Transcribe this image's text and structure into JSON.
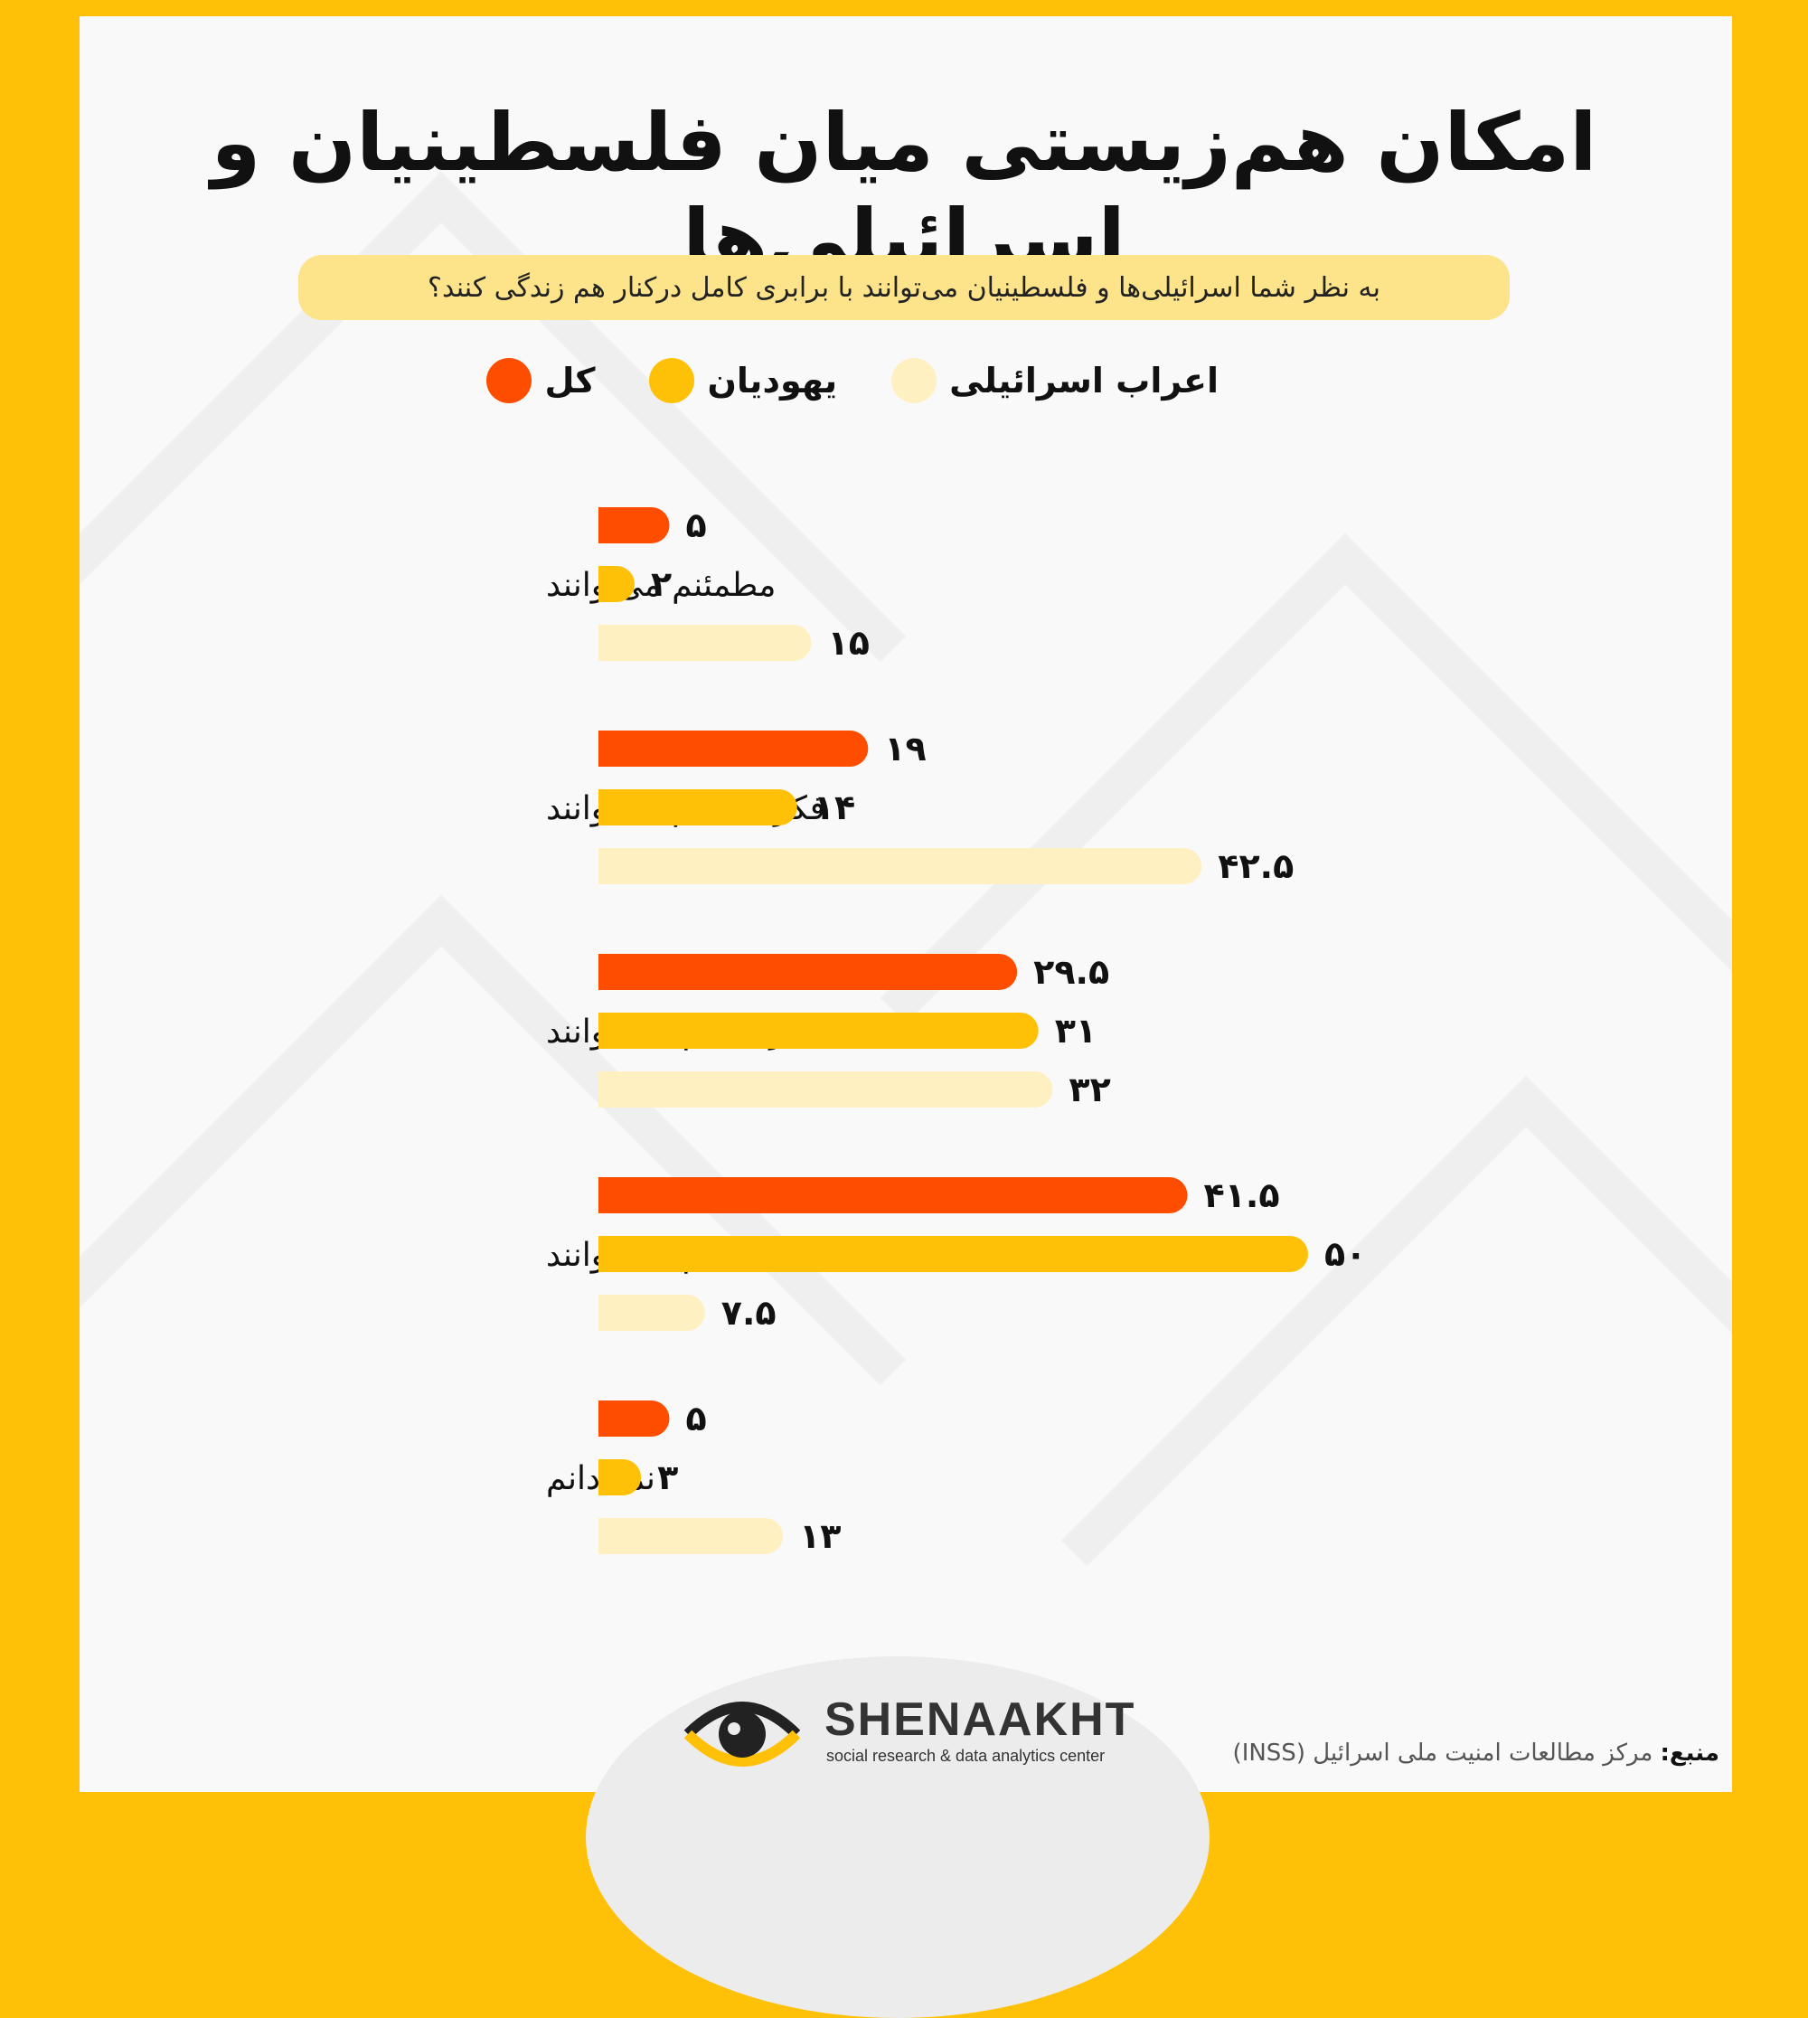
{
  "title": "امکان هم‌زیستی میان فلسطینیان و اسرائیلی‌ها",
  "question": "به نظر شما اسرائیلی‌ها و فلسطینیان می‌توانند با برابری کامل درکنار هم زندگی کنند؟",
  "colors": {
    "frame": "#ffc107",
    "total": "#ff4d00",
    "jews": "#ffc107",
    "arabs": "#fff0c2"
  },
  "legend": [
    {
      "label": "کل",
      "color": "#ff4d00"
    },
    {
      "label": "یهودیان",
      "color": "#ffc107"
    },
    {
      "label": "اعراب اسرائیلی",
      "color": "#fff0c2"
    }
  ],
  "chart_data": {
    "type": "bar",
    "orientation": "horizontal",
    "categories": [
      "مطمئنم می‌توانند",
      "فکر می‌کنم می‌توانند",
      "فکر میکنم نمی‌توانند",
      "مطمئنم نمی‌توانند",
      "نمی‌دانم"
    ],
    "series": [
      {
        "name": "کل",
        "color": "#ff4d00",
        "values": [
          5,
          19,
          29.5,
          41.5,
          5
        ],
        "labels": [
          "۵",
          "۱۹",
          "۲۹.۵",
          "۴۱.۵",
          "۵"
        ]
      },
      {
        "name": "یهودیان",
        "color": "#ffc107",
        "values": [
          2,
          14,
          31,
          50,
          3
        ],
        "labels": [
          "۲",
          "۱۴",
          "۳۱",
          "۵۰",
          "۳"
        ]
      },
      {
        "name": "اعراب اسرائیلی",
        "color": "#fff0c2",
        "values": [
          15,
          42.5,
          32,
          7.5,
          13
        ],
        "labels": [
          "۱۵",
          "۴۲.۵",
          "۳۲",
          "۷.۵",
          "۱۳"
        ]
      }
    ]
  },
  "logo": {
    "name": "SHENAAKHT",
    "tagline": "social research & data analytics center",
    "icon": "eye-icon"
  },
  "source": {
    "label": "منبع:",
    "text": "مرکز مطالعات امنیت ملی اسرائیل (INSS)"
  }
}
